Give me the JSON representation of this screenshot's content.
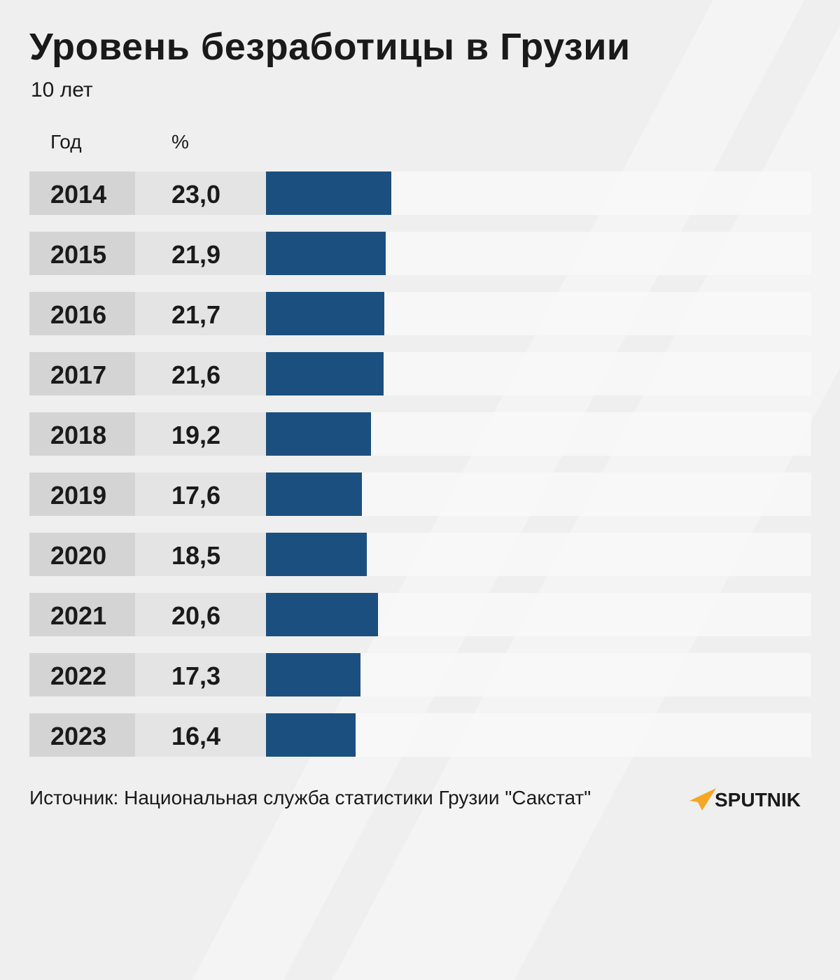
{
  "title": "Уровень безработицы в Грузии",
  "subtitle": "10 лет",
  "headers": {
    "year": "Год",
    "percent": "%"
  },
  "source": "Источник: Национальная служба статистики Грузии \"Сакстат\"",
  "logo_text": "SPUTNIK",
  "colors": {
    "bar": "#1b4f80",
    "logo_accent": "#f5a623",
    "background": "#efefef"
  },
  "chart_data": {
    "type": "bar",
    "orientation": "horizontal",
    "title": "Уровень безработицы в Грузии",
    "subtitle": "10 лет",
    "xlim": [
      0,
      100
    ],
    "categories": [
      "2014",
      "2015",
      "2016",
      "2017",
      "2018",
      "2019",
      "2020",
      "2021",
      "2022",
      "2023"
    ],
    "values": [
      23.0,
      21.9,
      21.7,
      21.6,
      19.2,
      17.6,
      18.5,
      20.6,
      17.3,
      16.4
    ],
    "labels": [
      "23,0",
      "21,9",
      "21,7",
      "21,6",
      "19,2",
      "17,6",
      "18,5",
      "20,6",
      "17,3",
      "16,4"
    ]
  }
}
